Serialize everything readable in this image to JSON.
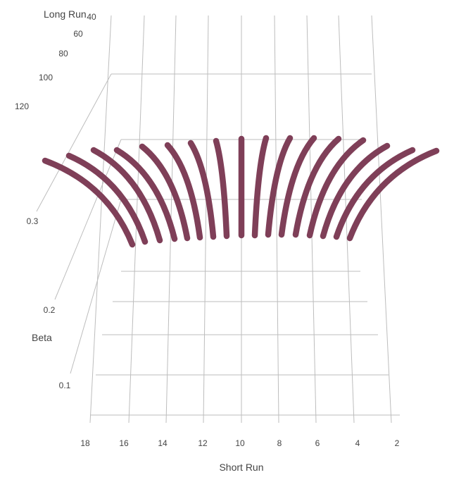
{
  "chart_data": {
    "type": "line3d",
    "title": "",
    "axes": {
      "x": {
        "label": "Short Run",
        "ticks": [
          18,
          16,
          14,
          12,
          10,
          8,
          6,
          4,
          2
        ]
      },
      "y": {
        "label": "Long Run",
        "ticks": [
          40,
          60,
          80,
          100,
          120
        ]
      },
      "z": {
        "label": "Beta",
        "ticks": [
          0.1,
          0.2,
          0.3
        ]
      }
    },
    "grid": true,
    "series_color": "#7f3f58",
    "series_short_run": [
      20,
      19,
      18,
      17,
      16,
      15,
      14,
      13,
      12,
      11,
      10,
      9,
      8,
      7,
      6,
      5,
      4,
      3,
      2,
      1
    ],
    "long_run_range": [
      40,
      120
    ]
  }
}
